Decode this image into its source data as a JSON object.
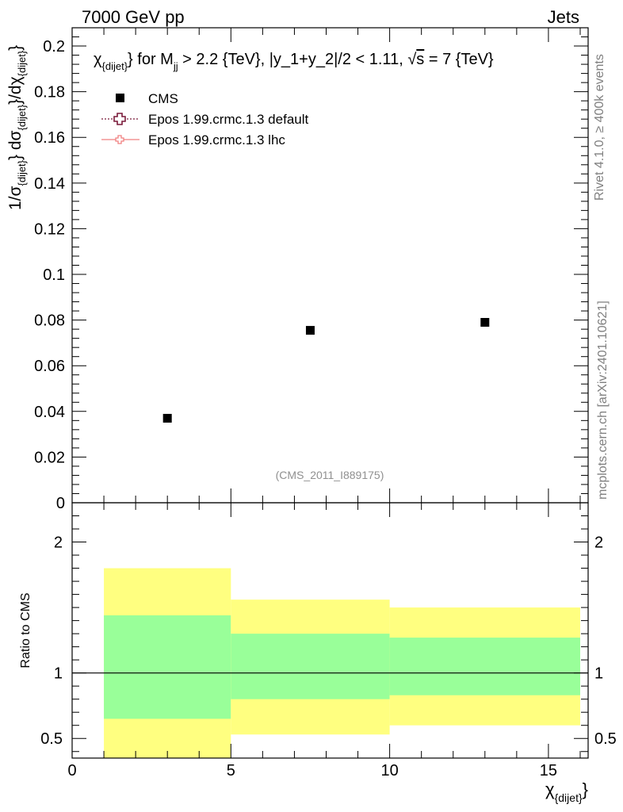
{
  "header": {
    "left": "7000 GeV pp",
    "right": "Jets"
  },
  "side": {
    "rivet": "Rivet 4.1.0, ≥ 400k events",
    "mcplots": "mcplots.cern.ch [arXiv:2401.10621]"
  },
  "chart_data": {
    "type": "scatter",
    "title": {
      "chi": "χ",
      "chi_sub": "{dijet}",
      "mid": "} for M",
      "m_sub": "jj",
      "rest": " > 2.2 {TeV}, |y_1+y_2|/2 < 1.11, ",
      "sqrt": "√",
      "s": "s",
      "tail": " = 7 {TeV}"
    },
    "analysis_tag": "(CMS_2011_I889175)",
    "xlabel": {
      "main": "χ",
      "sub": "{dijet}",
      "close": "}"
    },
    "ylabel": {
      "p1": "1/σ",
      "s1": "{dijet}",
      "p2": "} dσ",
      "s2": "{dijet}",
      "p3": "}/dχ",
      "s3": "{dijet}",
      "p4": "}"
    },
    "ratio_ylabel": "Ratio to CMS",
    "xlim": [
      0,
      16.25
    ],
    "ylim": [
      0,
      0.208
    ],
    "ratio_ylim": [
      0.35,
      2.3
    ],
    "x_ticks": [
      0,
      5,
      10,
      15
    ],
    "x_tick_labels": [
      "0",
      "5",
      "10",
      "15"
    ],
    "y_ticks": [
      0,
      0.02,
      0.04,
      0.06,
      0.08,
      0.1,
      0.12,
      0.14,
      0.16,
      0.18,
      0.2
    ],
    "y_tick_labels": [
      "0",
      "0.02",
      "0.04",
      "0.06",
      "0.08",
      "0.1",
      "0.12",
      "0.14",
      "0.16",
      "0.18",
      "0.2"
    ],
    "ratio_ticks": [
      0.5,
      1,
      2
    ],
    "ratio_tick_labels": [
      "0.5",
      "1",
      "2"
    ],
    "legend": [
      {
        "name": "CMS",
        "color": "#000000",
        "style": "marker"
      },
      {
        "name": "Epos 1.99.crmc.1.3 default",
        "color": "#7a1a3a",
        "style": "dotted-cross"
      },
      {
        "name": "Epos 1.99.crmc.1.3 lhc",
        "color": "#f08080",
        "style": "solid-cross"
      }
    ],
    "series": [
      {
        "name": "CMS",
        "x": [
          3,
          7.5,
          13
        ],
        "y": [
          0.037,
          0.0755,
          0.079
        ]
      }
    ],
    "ratio_bands": [
      {
        "xlo": 1,
        "xhi": 5,
        "outer": [
          0.35,
          1.8
        ],
        "inner": [
          0.65,
          1.44
        ]
      },
      {
        "xlo": 5,
        "xhi": 10,
        "outer": [
          0.53,
          1.56
        ],
        "inner": [
          0.8,
          1.3
        ]
      },
      {
        "xlo": 10,
        "xhi": 16,
        "outer": [
          0.6,
          1.5
        ],
        "inner": [
          0.83,
          1.27
        ]
      }
    ],
    "colors": {
      "outer_band": "#ffff80",
      "inner_band": "#99ff99"
    }
  }
}
